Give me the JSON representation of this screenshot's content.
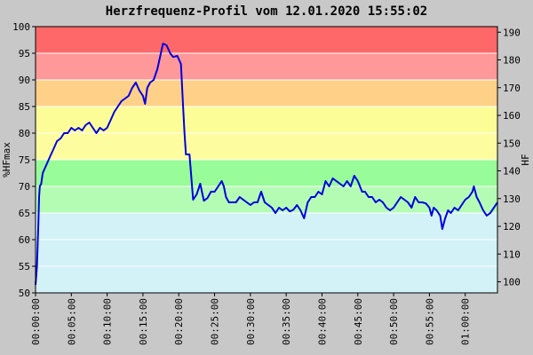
{
  "chart_data": {
    "type": "line",
    "title": "Herzfrequenz-Profil vom 12.01.2020 15:55:02",
    "ylabel_left": "%HFmax",
    "ylabel_right": "HF",
    "xlabel": "",
    "ylim_left": [
      50,
      100
    ],
    "yticks_left": [
      50,
      55,
      60,
      65,
      70,
      75,
      80,
      85,
      90,
      95,
      100
    ],
    "ylim_right": [
      96,
      192
    ],
    "yticks_right": [
      100,
      110,
      120,
      130,
      140,
      150,
      160,
      170,
      180,
      190
    ],
    "xlim_minutes": [
      0,
      64.5
    ],
    "xticks": [
      {
        "m": 0,
        "label": "00:00:00"
      },
      {
        "m": 5,
        "label": "00:05:00"
      },
      {
        "m": 10,
        "label": "00:10:00"
      },
      {
        "m": 15,
        "label": "00:15:00"
      },
      {
        "m": 20,
        "label": "00:20:00"
      },
      {
        "m": 25,
        "label": "00:25:00"
      },
      {
        "m": 30,
        "label": "00:30:00"
      },
      {
        "m": 35,
        "label": "00:35:00"
      },
      {
        "m": 40,
        "label": "00:40:00"
      },
      {
        "m": 45,
        "label": "00:45:00"
      },
      {
        "m": 50,
        "label": "00:50:00"
      },
      {
        "m": 55,
        "label": "00:55:00"
      },
      {
        "m": 60,
        "label": "01:00:00"
      }
    ],
    "grid": true,
    "zones": [
      {
        "from": 50,
        "to": 65,
        "color": "#d2f2f8"
      },
      {
        "from": 65,
        "to": 70,
        "color": "#b4fcb4"
      },
      {
        "from": 70,
        "to": 75,
        "color": "#98fc98"
      },
      {
        "from": 75,
        "to": 80,
        "color": "#fdfda0"
      },
      {
        "from": 80,
        "to": 85,
        "color": "#fdfd98"
      },
      {
        "from": 85,
        "to": 90,
        "color": "#ffd088"
      },
      {
        "from": 90,
        "to": 95,
        "color": "#ff9898"
      },
      {
        "from": 95,
        "to": 100,
        "color": "#ff6868"
      }
    ],
    "series": [
      {
        "color": "#0000e0",
        "points": [
          [
            0,
            51.5
          ],
          [
            0.2,
            55
          ],
          [
            0.4,
            63
          ],
          [
            0.5,
            68
          ],
          [
            0.6,
            70
          ],
          [
            0.8,
            70.5
          ],
          [
            1,
            72.5
          ],
          [
            1.5,
            74
          ],
          [
            2,
            75.5
          ],
          [
            2.5,
            77
          ],
          [
            3,
            78.5
          ],
          [
            3.5,
            79
          ],
          [
            4,
            80
          ],
          [
            4.5,
            80
          ],
          [
            5,
            81
          ],
          [
            5.5,
            80.5
          ],
          [
            6,
            81
          ],
          [
            6.5,
            80.5
          ],
          [
            7,
            81.5
          ],
          [
            7.5,
            82
          ],
          [
            8,
            81
          ],
          [
            8.5,
            80
          ],
          [
            9,
            81
          ],
          [
            9.5,
            80.5
          ],
          [
            10,
            81
          ],
          [
            10.5,
            82.5
          ],
          [
            11,
            84
          ],
          [
            11.5,
            85
          ],
          [
            12,
            86
          ],
          [
            12.5,
            86.5
          ],
          [
            13,
            87
          ],
          [
            13.5,
            88.5
          ],
          [
            14,
            89.5
          ],
          [
            14.5,
            88
          ],
          [
            15,
            87
          ],
          [
            15.3,
            85.5
          ],
          [
            15.6,
            88.5
          ],
          [
            16,
            89.5
          ],
          [
            16.5,
            90
          ],
          [
            17,
            92
          ],
          [
            17.5,
            95
          ],
          [
            17.8,
            96.8
          ],
          [
            18.3,
            96.5
          ],
          [
            18.8,
            95
          ],
          [
            19.2,
            94.3
          ],
          [
            19.8,
            94.5
          ],
          [
            20.3,
            93
          ],
          [
            20.6,
            85
          ],
          [
            20.8,
            80
          ],
          [
            21,
            76
          ],
          [
            21.5,
            76
          ],
          [
            22,
            67.5
          ],
          [
            22.5,
            68.5
          ],
          [
            23,
            70.5
          ],
          [
            23.5,
            67.3
          ],
          [
            24,
            67.8
          ],
          [
            24.5,
            69
          ],
          [
            25,
            69
          ],
          [
            25.5,
            70
          ],
          [
            26,
            71
          ],
          [
            26.3,
            70
          ],
          [
            26.6,
            68
          ],
          [
            27,
            67
          ],
          [
            27.5,
            67
          ],
          [
            28,
            67
          ],
          [
            28.5,
            68
          ],
          [
            29,
            67.5
          ],
          [
            29.5,
            67
          ],
          [
            30,
            66.5
          ],
          [
            30.5,
            67
          ],
          [
            31,
            67
          ],
          [
            31.5,
            69
          ],
          [
            32,
            67
          ],
          [
            32.5,
            66.5
          ],
          [
            33,
            66
          ],
          [
            33.5,
            65
          ],
          [
            34,
            66
          ],
          [
            34.5,
            65.5
          ],
          [
            35,
            66
          ],
          [
            35.5,
            65.3
          ],
          [
            36,
            65.6
          ],
          [
            36.5,
            66.5
          ],
          [
            37,
            65.5
          ],
          [
            37.5,
            64
          ],
          [
            38,
            67
          ],
          [
            38.5,
            68
          ],
          [
            39,
            68
          ],
          [
            39.5,
            69
          ],
          [
            40,
            68.5
          ],
          [
            40.5,
            71
          ],
          [
            41,
            70
          ],
          [
            41.5,
            71.5
          ],
          [
            42,
            71
          ],
          [
            42.5,
            70.5
          ],
          [
            43,
            70
          ],
          [
            43.5,
            71
          ],
          [
            44,
            70
          ],
          [
            44.5,
            72
          ],
          [
            45,
            71
          ],
          [
            45.3,
            70
          ],
          [
            45.6,
            69
          ],
          [
            46,
            69
          ],
          [
            46.5,
            68
          ],
          [
            47,
            68
          ],
          [
            47.5,
            67
          ],
          [
            48,
            67.5
          ],
          [
            48.5,
            67
          ],
          [
            49,
            66
          ],
          [
            49.5,
            65.5
          ],
          [
            50,
            66
          ],
          [
            50.5,
            67
          ],
          [
            51,
            68
          ],
          [
            51.5,
            67.5
          ],
          [
            52,
            67
          ],
          [
            52.5,
            66
          ],
          [
            53,
            68
          ],
          [
            53.5,
            67
          ],
          [
            54,
            67
          ],
          [
            54.5,
            66.8
          ],
          [
            55,
            66
          ],
          [
            55.3,
            64.5
          ],
          [
            55.6,
            66
          ],
          [
            56,
            65.5
          ],
          [
            56.5,
            64.5
          ],
          [
            56.8,
            62
          ],
          [
            57.2,
            64
          ],
          [
            57.6,
            65.5
          ],
          [
            58,
            65
          ],
          [
            58.5,
            66
          ],
          [
            59,
            65.5
          ],
          [
            59.5,
            66.5
          ],
          [
            60,
            67.5
          ],
          [
            60.5,
            68
          ],
          [
            61,
            69
          ],
          [
            61.2,
            70
          ],
          [
            61.6,
            68
          ],
          [
            62,
            67
          ],
          [
            62.5,
            65.5
          ],
          [
            63,
            64.5
          ],
          [
            63.5,
            65
          ],
          [
            64,
            66
          ],
          [
            64.5,
            67
          ]
        ]
      }
    ]
  }
}
